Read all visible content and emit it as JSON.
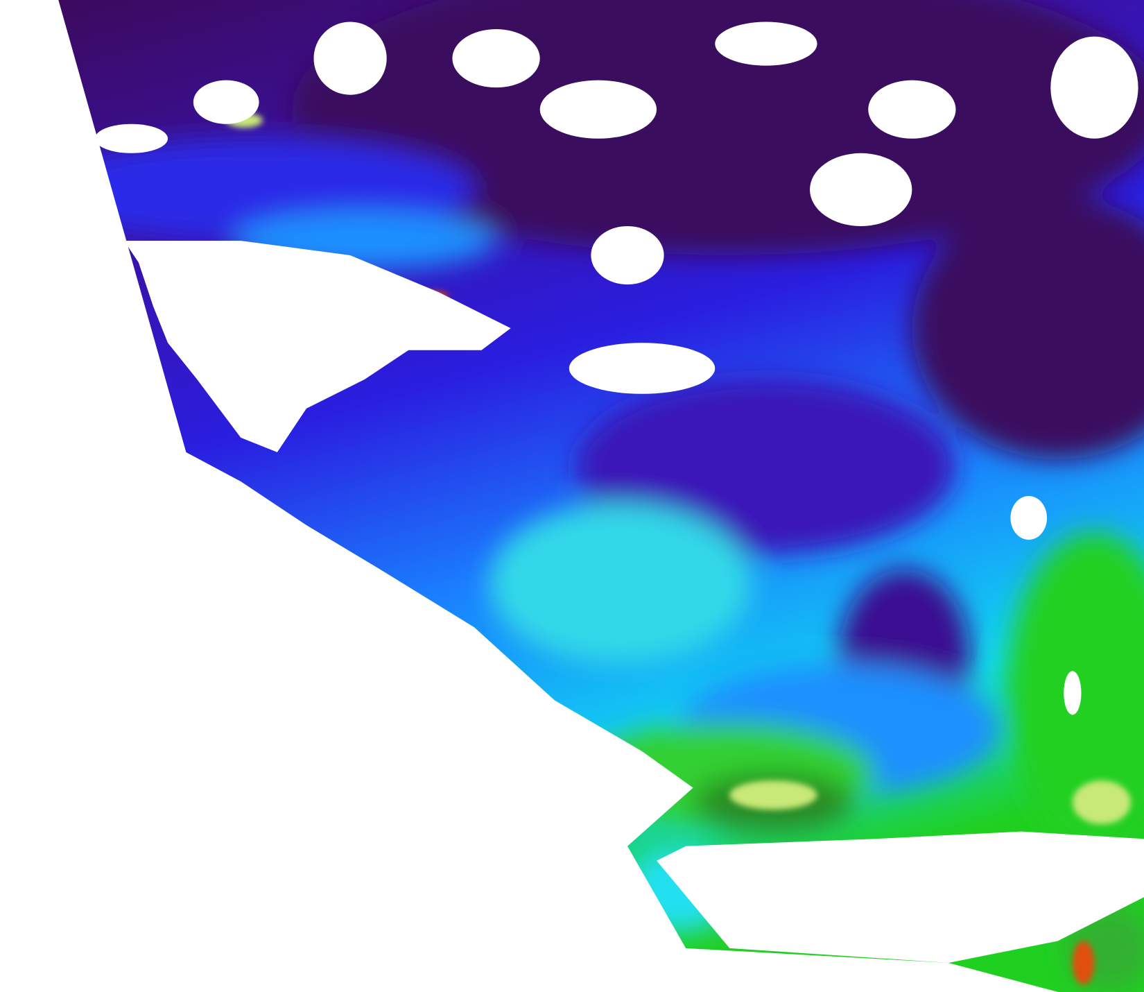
{
  "image": {
    "kind": "satellite swath, ocean color false-color composite",
    "background": "#ffffff",
    "palette": {
      "deep_purple": "#3b0a5e",
      "purple": "#3a12a8",
      "blue": "#2a1ee0",
      "medium_blue": "#1a60f0",
      "light_blue": "#1aa0ff",
      "cyan": "#10e8f0",
      "green": "#20d020",
      "dark_green": "#2a8a20",
      "yellow_green": "#c8e878",
      "yellow": "#f0f020",
      "red": "#e02010",
      "cloud": "#ffffff"
    }
  }
}
